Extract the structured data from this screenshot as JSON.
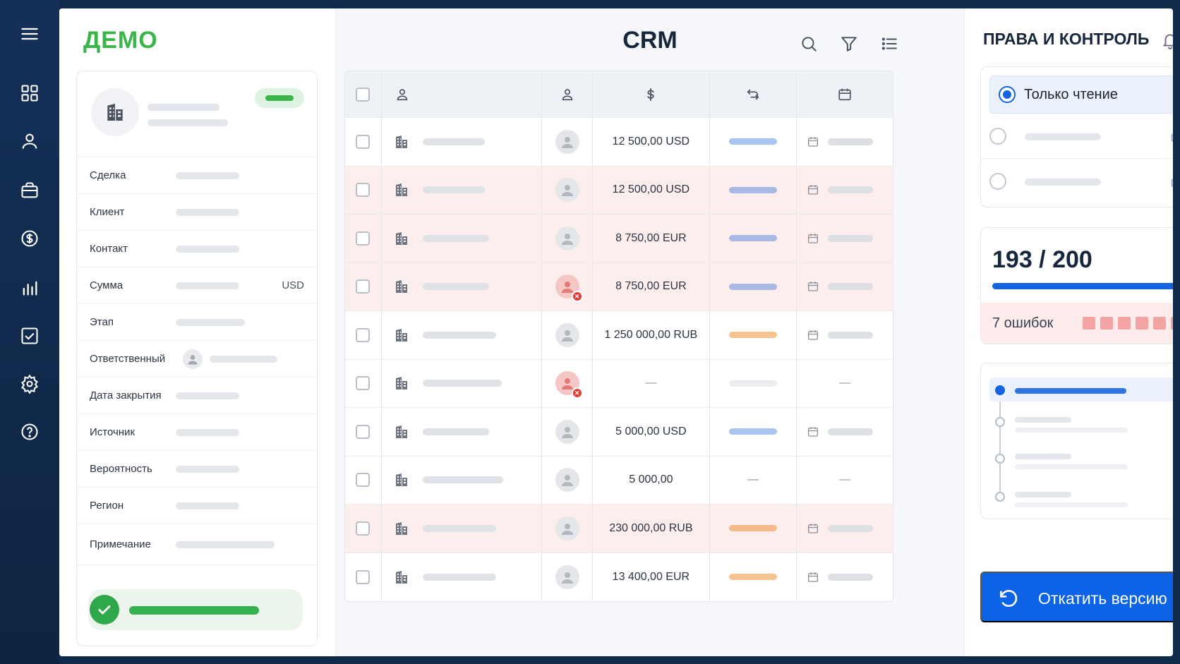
{
  "brand": "ДЕМО",
  "rail": {
    "icons": [
      "menu-icon",
      "dashboard-icon",
      "user-icon",
      "briefcase-icon",
      "dollar-icon",
      "bar-chart-icon",
      "task-check-icon",
      "settings-icon",
      "help-icon"
    ]
  },
  "record": {
    "fields": [
      {
        "label": "Сделка",
        "unit": ""
      },
      {
        "label": "Клиент",
        "unit": ""
      },
      {
        "label": "Контакт",
        "unit": ""
      },
      {
        "label": "Сумма",
        "unit": "USD"
      },
      {
        "label": "Этап",
        "unit": ""
      },
      {
        "label": "Ответственный",
        "unit": ""
      },
      {
        "label": "Дата закрытия",
        "unit": ""
      },
      {
        "label": "Источник",
        "unit": ""
      },
      {
        "label": "Вероятность",
        "unit": ""
      },
      {
        "label": "Регион",
        "unit": ""
      },
      {
        "label": "Примечание",
        "unit": ""
      }
    ]
  },
  "crm": {
    "title": "CRM",
    "toolbar": [
      "search-icon",
      "filter-icon",
      "list-icon"
    ],
    "columns": [
      "select",
      "company-icon",
      "owner-icon",
      "amount-icon",
      "status-icon",
      "date-icon"
    ],
    "rows": [
      {
        "amount": "12 500,00 USD",
        "status_color": "#a9c4ee",
        "alert": false,
        "owner_error": false,
        "has_date": true
      },
      {
        "amount": "12 500,00 USD",
        "status_color": "#a9b9e6",
        "alert": true,
        "owner_error": false,
        "has_date": true
      },
      {
        "amount": "8 750,00 EUR",
        "status_color": "#a9b9e6",
        "alert": true,
        "owner_error": false,
        "has_date": true
      },
      {
        "amount": "8 750,00 EUR",
        "status_color": "#a9b9e6",
        "alert": true,
        "owner_error": true,
        "has_date": true
      },
      {
        "amount": "1 250 000,00 RUB",
        "status_color": "#f6c28f",
        "alert": false,
        "owner_error": false,
        "has_date": true
      },
      {
        "amount": "—",
        "status_color": "#ebedf0",
        "alert": false,
        "owner_error": true,
        "has_date": false,
        "date_text": "—"
      },
      {
        "amount": "5 000,00 USD",
        "status_color": "#a9c4ee",
        "alert": false,
        "owner_error": false,
        "has_date": true
      },
      {
        "amount": "5 000,00",
        "status_color": "",
        "status_text": "—",
        "alert": false,
        "owner_error": false,
        "has_date": false,
        "date_text": "—"
      },
      {
        "amount": "230 000,00 RUB",
        "status_color": "#f6b98a",
        "alert": true,
        "owner_error": false,
        "has_date": true
      },
      {
        "amount": "13 400,00 EUR",
        "status_color": "#f6c28f",
        "alert": false,
        "owner_error": false,
        "has_date": true
      }
    ]
  },
  "rights": {
    "title": "ПРАВА И КОНТРОЛЬ",
    "selected_option": "Только чтение",
    "usage": {
      "used": 193,
      "total": 200,
      "text": "193 / 200"
    },
    "errors_label": "7 ошибок",
    "error_count": 7,
    "rollback_label": "Откатить версию"
  },
  "colors": {
    "accent": "#1463e0",
    "brand_green": "#3bb54a",
    "alert_row": "#fdeeee",
    "error": "#e23b3b"
  }
}
